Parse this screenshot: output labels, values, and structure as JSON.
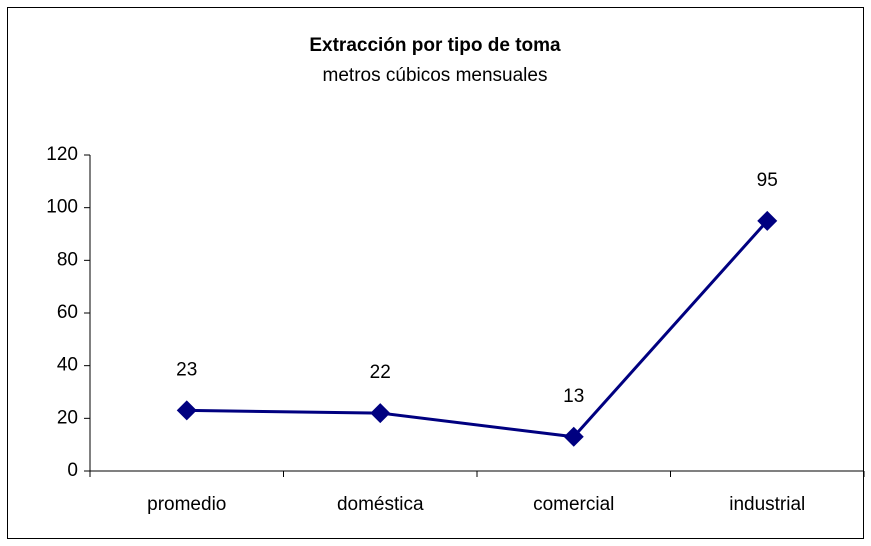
{
  "chart_data": {
    "type": "line",
    "title": "Extracción por tipo de toma",
    "subtitle": "metros cúbicos mensuales",
    "categories": [
      "promedio",
      "doméstica",
      "comercial",
      "industrial"
    ],
    "values": [
      23,
      22,
      13,
      95
    ],
    "color": "#000080",
    "ylim": [
      0,
      120
    ],
    "yticks": [
      0,
      20,
      40,
      60,
      80,
      100,
      120
    ],
    "grid": false
  }
}
